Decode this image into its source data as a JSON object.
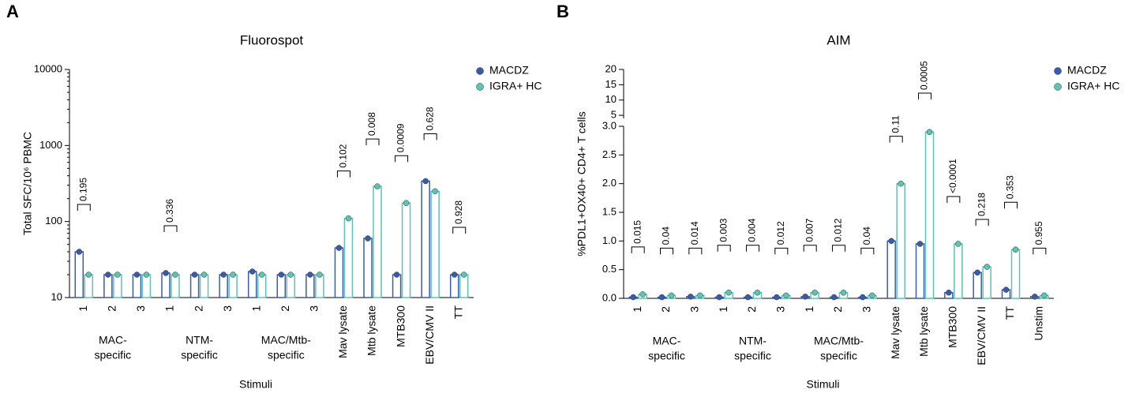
{
  "chart_data": [
    {
      "type": "bar",
      "panel": "A",
      "title": "Fluorospot",
      "xlabel": "Stimuli",
      "ylabel": "Total SFC/10⁶ PBMC",
      "categories": [
        "1",
        "2",
        "3",
        "1",
        "2",
        "3",
        "1",
        "2",
        "3",
        "Mav lysate",
        "Mtb lysate",
        "MTB300",
        "EBV/CMV II",
        "TT"
      ],
      "groups": [
        [
          "MAC-",
          "specific"
        ],
        [
          "NTM-",
          "specific"
        ],
        [
          "MAC/Mtb-",
          "specific"
        ]
      ],
      "series": [
        {
          "name": "MACDZ",
          "color": "#3b5ba9",
          "values": [
            40,
            20,
            20,
            21,
            20,
            20,
            22,
            20,
            20,
            45,
            60,
            20,
            340,
            20
          ]
        },
        {
          "name": "IGRA+ HC",
          "color": "#5cc4b0",
          "values": [
            20,
            20,
            20,
            20,
            20,
            20,
            20,
            20,
            20,
            110,
            290,
            175,
            250,
            20
          ]
        }
      ],
      "pvalues": [
        "0.195",
        null,
        null,
        "0.336",
        null,
        null,
        null,
        null,
        null,
        "0.102",
        "0.008",
        "0.0009",
        "0.628",
        "0.928"
      ],
      "log_scale": true,
      "ylim": [
        10,
        10000
      ],
      "yticks": [
        10,
        100,
        1000,
        10000
      ],
      "legend": "top-right"
    },
    {
      "type": "bar",
      "panel": "B",
      "title": "AIM",
      "xlabel": "Stimuli",
      "ylabel": "%PDL1+OX40+ CD4+ T cells",
      "categories": [
        "1",
        "2",
        "3",
        "1",
        "2",
        "3",
        "1",
        "2",
        "3",
        "Mav lysate",
        "Mtb lysate",
        "MTB300",
        "EBV/CMV II",
        "TT",
        "Unstim"
      ],
      "groups": [
        [
          "MAC-",
          "specific"
        ],
        [
          "NTM-",
          "specific"
        ],
        [
          "MAC/Mtb-",
          "specific"
        ]
      ],
      "series": [
        {
          "name": "MACDZ",
          "color": "#3b5ba9",
          "values": [
            0.02,
            0.02,
            0.03,
            0.02,
            0.02,
            0.02,
            0.03,
            0.02,
            0.02,
            1.0,
            0.95,
            0.1,
            0.45,
            0.15,
            0.03
          ]
        },
        {
          "name": "IGRA+ HC",
          "color": "#5cc4b0",
          "values": [
            0.07,
            0.05,
            0.05,
            0.1,
            0.1,
            0.05,
            0.1,
            0.1,
            0.05,
            2.0,
            2.9,
            0.95,
            0.55,
            0.85,
            0.05
          ]
        }
      ],
      "pvalues": [
        "0.015",
        "0.04",
        "0.014",
        "0.003",
        "0.004",
        "0.012",
        "0.007",
        "0.012",
        "0.04",
        "0.11",
        "0.0005",
        "<0.0001",
        "0.218",
        "0.353",
        "0.955"
      ],
      "log_scale": false,
      "ylim": [
        0,
        3
      ],
      "yticks": [
        {
          "value": 0,
          "label": "0.0"
        },
        0.5,
        {
          "value": 1,
          "label": "1.0"
        },
        1.5,
        {
          "value": 2,
          "label": "2.0"
        },
        2.5,
        {
          "value": 3,
          "label": "3.0"
        }
      ],
      "ylim_upper": [
        4,
        20
      ],
      "yticks_upper": [
        5,
        10,
        15,
        20
      ],
      "legend": "top-right"
    }
  ]
}
